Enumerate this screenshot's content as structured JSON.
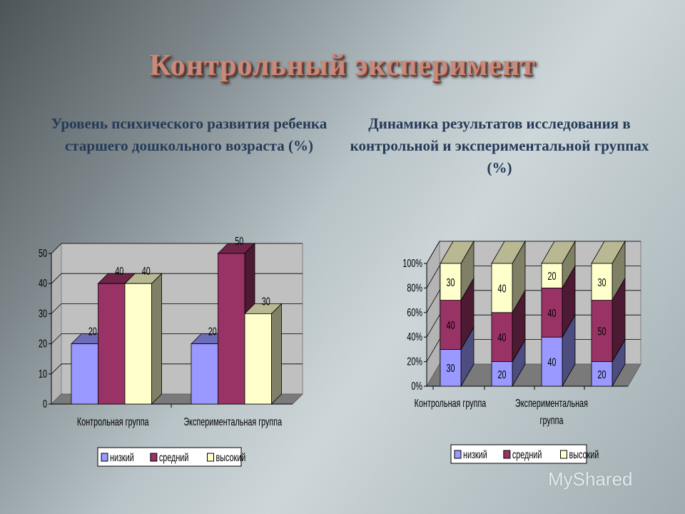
{
  "title": "Контрольный эксперимент",
  "watermark": "MyShared",
  "colors": {
    "low": "#9999ff",
    "mid": "#993366",
    "high": "#ffffcc"
  },
  "chart_data": [
    {
      "type": "bar",
      "title": "Уровень психического развития ребенка старшего дошкольного возраста (%)",
      "categories": [
        "Контрольная группа",
        "Экспериментальная группа"
      ],
      "series": [
        {
          "name": "низкий",
          "values": [
            20,
            20
          ]
        },
        {
          "name": "средний",
          "values": [
            40,
            50
          ]
        },
        {
          "name": "высокий",
          "values": [
            40,
            30
          ]
        }
      ],
      "ylim": [
        0,
        50
      ],
      "yticks": [
        "0",
        "10",
        "20",
        "30",
        "40",
        "50"
      ],
      "grid": true,
      "legend": "bottom",
      "style": "3d-clustered"
    },
    {
      "type": "bar",
      "title": "Динамика результатов исследования в контрольной и экспериментальной группах (%)",
      "categories": [
        "Контрольная группа",
        "",
        "Экспериментальная группа",
        ""
      ],
      "series": [
        {
          "name": "низкий",
          "values": [
            30,
            20,
            40,
            20
          ]
        },
        {
          "name": "средний",
          "values": [
            40,
            40,
            40,
            50
          ]
        },
        {
          "name": "высокий",
          "values": [
            30,
            40,
            20,
            30
          ]
        }
      ],
      "ylim": [
        0,
        100
      ],
      "yticks": [
        "0%",
        "20%",
        "40%",
        "60%",
        "80%",
        "100%"
      ],
      "grid": true,
      "legend": "bottom",
      "style": "3d-stacked-100"
    }
  ]
}
